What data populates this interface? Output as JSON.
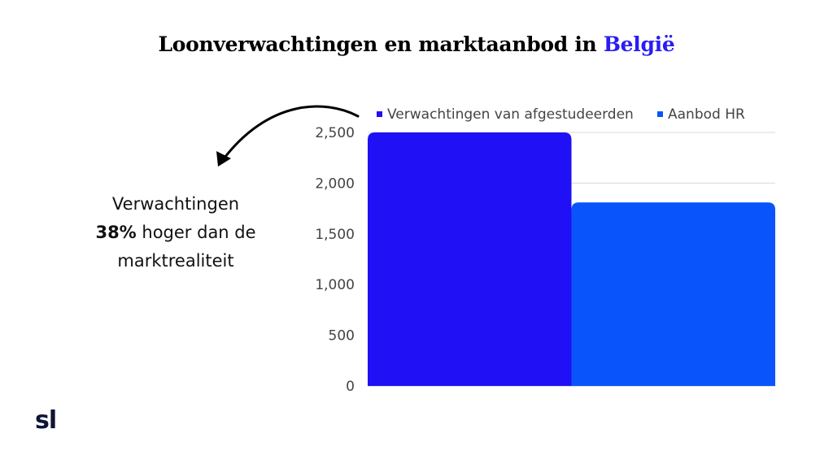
{
  "title": {
    "prefix": "Loonverwachtingen en marktaanbod in ",
    "highlight": "België"
  },
  "callout": {
    "line1": "Verwachtingen",
    "percent": "38%",
    "line2_rest": " hoger dan de",
    "line3": "marktrealiteit"
  },
  "logo": "sl",
  "colors": {
    "accent": "#2a1df2",
    "series1": "#2010f5",
    "series2": "#0a55fb",
    "grid": "#d9d9d9"
  },
  "chart_data": {
    "type": "bar",
    "categories": [
      ""
    ],
    "series": [
      {
        "name": "Verwachtingen van afgestudeerden",
        "values": [
          2500
        ]
      },
      {
        "name": "Aanbod HR",
        "values": [
          1810
        ]
      }
    ],
    "ylim": [
      0,
      2500
    ],
    "yticks": [
      0,
      500,
      1000,
      1500,
      2000,
      2500
    ],
    "ytick_labels": [
      "0",
      "500",
      "1,000",
      "1,500",
      "2,000",
      "2,500"
    ],
    "legend_position": "top",
    "grid": true
  }
}
